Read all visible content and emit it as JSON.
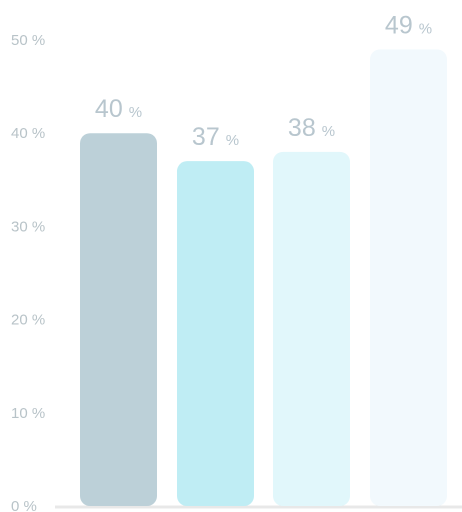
{
  "chart_data": {
    "type": "bar",
    "categories": [
      "",
      "",
      "",
      ""
    ],
    "values": [
      40,
      37,
      38,
      49
    ],
    "unit": "%",
    "ylim": [
      0,
      50
    ],
    "ytick_values": [
      0,
      10,
      20,
      30,
      40,
      50
    ],
    "ytick_labels": [
      "0 %",
      "10 %",
      "20 %",
      "30 %",
      "40 %",
      "50 %"
    ],
    "data_labels": [
      "40",
      "37",
      "38",
      "49"
    ],
    "legend": "none",
    "grid": false
  },
  "colors": {
    "bars": [
      "#bcd0d8",
      "#bfedf4",
      "#e1f7fb",
      "#f2f9fd"
    ],
    "tick_text": "#b8c3c8",
    "value_text": "#b8c6ce",
    "baseline": "#e8e8e8"
  }
}
